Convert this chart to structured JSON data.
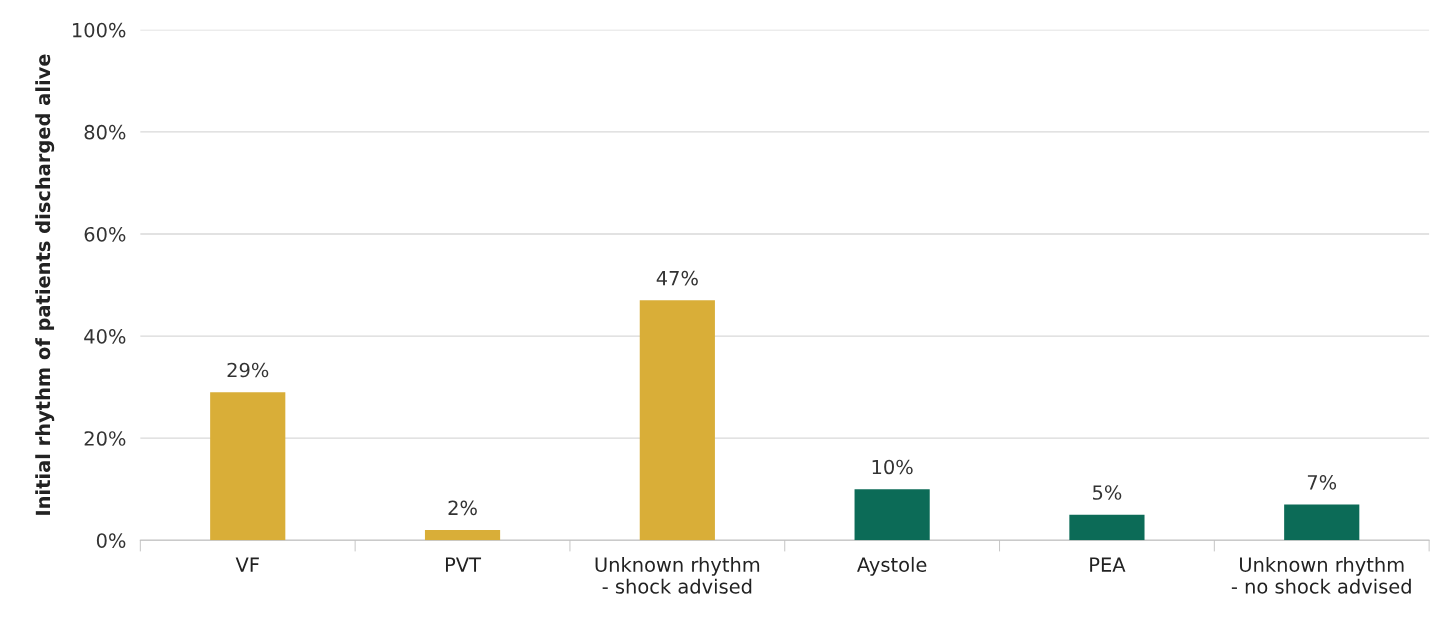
{
  "chart_data": {
    "type": "bar",
    "ylabel": "Initial rhythm of patients discharged alive",
    "categories": [
      "VF",
      "PVT",
      "Unknown rhythm\n- shock advised",
      "Aystole",
      "PEA",
      "Unknown rhythm\n- no shock advised"
    ],
    "values": [
      29,
      2,
      47,
      10,
      5,
      7
    ],
    "value_labels": [
      "29%",
      "2%",
      "47%",
      "10%",
      "5%",
      "7%"
    ],
    "colors": [
      "#d9ae38",
      "#d9ae38",
      "#d9ae38",
      "#0c6b57",
      "#0c6b57",
      "#0c6b57"
    ],
    "ylim": [
      0,
      100
    ],
    "yticks": [
      {
        "value": 0,
        "label": "0%"
      },
      {
        "value": 20,
        "label": "20%"
      },
      {
        "value": 40,
        "label": "40%"
      },
      {
        "value": 60,
        "label": "60%"
      },
      {
        "value": 80,
        "label": "80%"
      },
      {
        "value": 100,
        "label": "100%"
      }
    ],
    "grid": "y"
  }
}
